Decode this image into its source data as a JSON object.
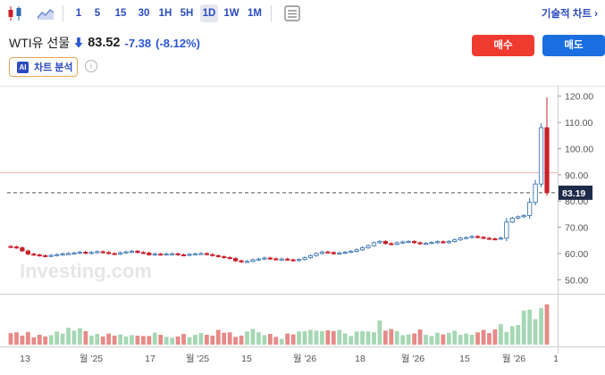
{
  "toolbar": {
    "intervals": [
      {
        "label": "1",
        "active": false
      },
      {
        "label": "5",
        "active": false
      },
      {
        "label": "15",
        "active": false
      },
      {
        "label": "30",
        "active": false
      },
      {
        "label": "1H",
        "active": false
      },
      {
        "label": "5H",
        "active": false
      },
      {
        "label": "1D",
        "active": true
      },
      {
        "label": "1W",
        "active": false
      },
      {
        "label": "1M",
        "active": false
      }
    ],
    "chart_types_label": "기술적 차트 ›"
  },
  "symbol": {
    "name": "WTI유 선물",
    "price": "83.52",
    "change": "-7.38",
    "change_pct": "(-8.12%)"
  },
  "actions": {
    "buy": "매수",
    "sell": "매도"
  },
  "ai_button": {
    "icon_text": "AI",
    "label": "차트 분석"
  },
  "colors": {
    "up_volume": "#a6d7b4",
    "down_volume": "#e58a88",
    "candle_up": "#2b6cb0",
    "candle_down": "#c8202a",
    "price_tag": "#1d2a4a",
    "buy": "#ef3a2f",
    "sell": "#1a6ee0"
  },
  "watermark": "Investing.com",
  "chart_data": {
    "type": "candlestick",
    "title": "",
    "y_ticks": [
      "120.00",
      "110.00",
      "100.00",
      "90.00",
      "80.00",
      "70.00",
      "60.00",
      "50.00"
    ],
    "ylim": [
      45,
      124
    ],
    "x_labels": [
      "13",
      "월 '25",
      "17",
      "월 '25",
      "15",
      "월 '26",
      "18",
      "월 '26",
      "15",
      "월 '26",
      "1"
    ],
    "current_price_label": "83.19",
    "current_price": 83.19,
    "reference_line": 90.8,
    "close_series": [
      62.5,
      62.2,
      61.0,
      59.8,
      59.5,
      59.2,
      59.0,
      59.3,
      59.6,
      59.9,
      60.0,
      60.2,
      60.5,
      60.1,
      60.4,
      60.7,
      60.4,
      60.0,
      59.8,
      60.3,
      60.6,
      60.9,
      60.4,
      60.2,
      59.5,
      59.8,
      59.6,
      59.8,
      59.9,
      59.5,
      59.4,
      59.7,
      59.9,
      60.0,
      59.6,
      59.2,
      58.8,
      58.5,
      58.1,
      57.2,
      56.8,
      57.0,
      57.6,
      57.9,
      58.3,
      58.0,
      57.7,
      57.9,
      57.6,
      57.4,
      57.7,
      58.4,
      59.2,
      60.0,
      60.6,
      60.4,
      59.9,
      60.2,
      60.5,
      60.8,
      61.4,
      62.2,
      63.0,
      64.1,
      64.6,
      63.8,
      63.5,
      64.1,
      64.4,
      64.6,
      64.1,
      63.7,
      63.9,
      64.2,
      64.5,
      64.1,
      64.6,
      65.2,
      65.9,
      66.1,
      66.5,
      66.2,
      65.8,
      65.6,
      65.5,
      65.9,
      72.0,
      73.5,
      74.0,
      74.5,
      79.5,
      86.5,
      108.0,
      83.2
    ],
    "volume_series": [
      0.28,
      0.3,
      0.22,
      0.31,
      0.18,
      0.24,
      0.2,
      0.23,
      0.32,
      0.27,
      0.41,
      0.34,
      0.4,
      0.33,
      0.22,
      0.26,
      0.2,
      0.27,
      0.22,
      0.25,
      0.2,
      0.23,
      0.22,
      0.21,
      0.21,
      0.29,
      0.24,
      0.19,
      0.17,
      0.2,
      0.26,
      0.18,
      0.24,
      0.28,
      0.24,
      0.22,
      0.36,
      0.29,
      0.3,
      0.19,
      0.22,
      0.32,
      0.38,
      0.3,
      0.23,
      0.26,
      0.19,
      0.14,
      0.27,
      0.25,
      0.32,
      0.33,
      0.36,
      0.34,
      0.33,
      0.35,
      0.33,
      0.36,
      0.27,
      0.21,
      0.32,
      0.33,
      0.32,
      0.3,
      0.59,
      0.34,
      0.38,
      0.33,
      0.23,
      0.25,
      0.27,
      0.37,
      0.24,
      0.21,
      0.29,
      0.25,
      0.29,
      0.34,
      0.24,
      0.27,
      0.24,
      0.3,
      0.36,
      0.28,
      0.37,
      0.5,
      0.31,
      0.45,
      0.48,
      0.83,
      0.85,
      0.62,
      0.89,
      0.98
    ]
  }
}
